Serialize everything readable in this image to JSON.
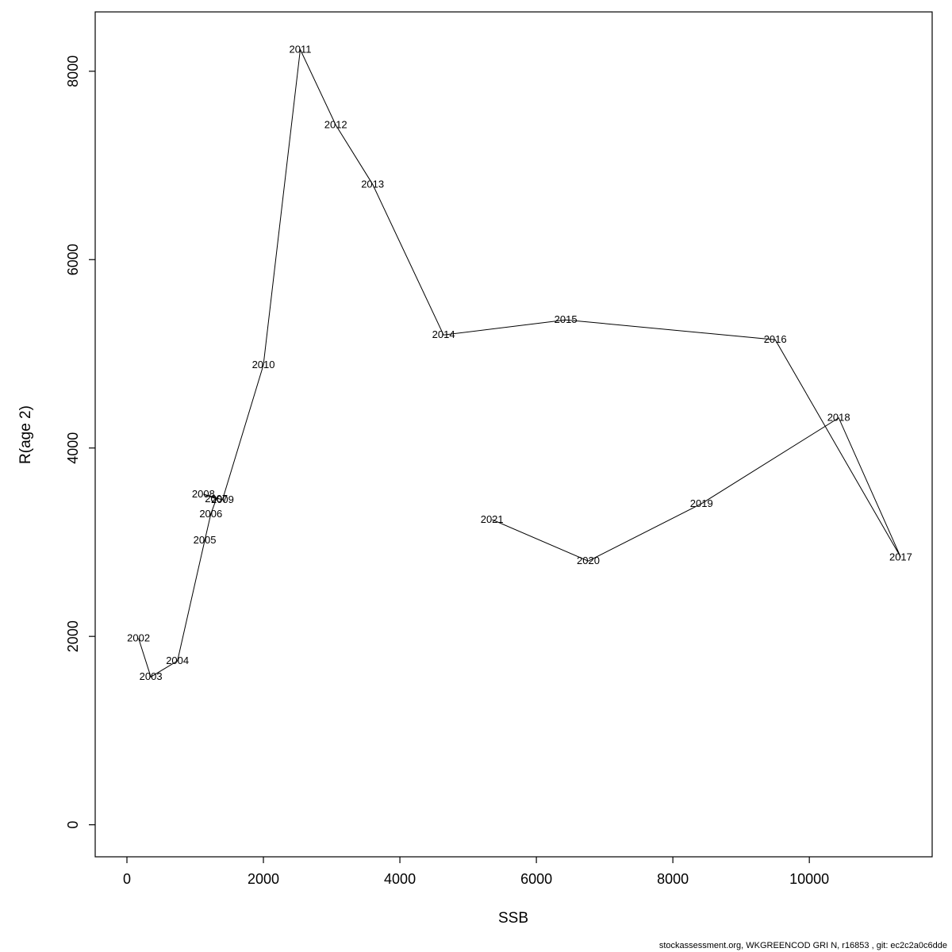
{
  "footer": {
    "text": "stockassessment.org, WKGREENCOD  GRI  N, r16853 , git: ec2c2a0c6dde"
  },
  "chart_data": {
    "type": "line",
    "title": "",
    "xlabel": "SSB",
    "ylabel": "R(age 2)",
    "x_ticks": [
      0,
      2000,
      4000,
      6000,
      8000,
      10000
    ],
    "y_ticks": [
      0,
      2000,
      4000,
      6000,
      8000
    ],
    "x_domain": [
      -465,
      11800
    ],
    "y_domain": [
      -340,
      8630
    ],
    "grid": false,
    "legend": "none",
    "line_color": "#000000",
    "point_label_color": "#FF0000",
    "points": [
      {
        "year": "2002",
        "ssb": 170,
        "r": 1980
      },
      {
        "year": "2003",
        "ssb": 350,
        "r": 1570
      },
      {
        "year": "2004",
        "ssb": 740,
        "r": 1740
      },
      {
        "year": "2005",
        "ssb": 1140,
        "r": 3020
      },
      {
        "year": "2006",
        "ssb": 1230,
        "r": 3300
      },
      {
        "year": "2007",
        "ssb": 1310,
        "r": 3460
      },
      {
        "year": "2008",
        "ssb": 1120,
        "r": 3510
      },
      {
        "year": "2009",
        "ssb": 1400,
        "r": 3450
      },
      {
        "year": "2010",
        "ssb": 2000,
        "r": 4880
      },
      {
        "year": "2011",
        "ssb": 2540,
        "r": 8230
      },
      {
        "year": "2012",
        "ssb": 3060,
        "r": 7430
      },
      {
        "year": "2013",
        "ssb": 3600,
        "r": 6800
      },
      {
        "year": "2014",
        "ssb": 4640,
        "r": 5200
      },
      {
        "year": "2015",
        "ssb": 6430,
        "r": 5360
      },
      {
        "year": "2016",
        "ssb": 9500,
        "r": 5150
      },
      {
        "year": "2017",
        "ssb": 11340,
        "r": 2840
      },
      {
        "year": "2018",
        "ssb": 10430,
        "r": 4320
      },
      {
        "year": "2019",
        "ssb": 8420,
        "r": 3410
      },
      {
        "year": "2020",
        "ssb": 6760,
        "r": 2800
      },
      {
        "year": "2021",
        "ssb": 5350,
        "r": 3240
      }
    ]
  }
}
